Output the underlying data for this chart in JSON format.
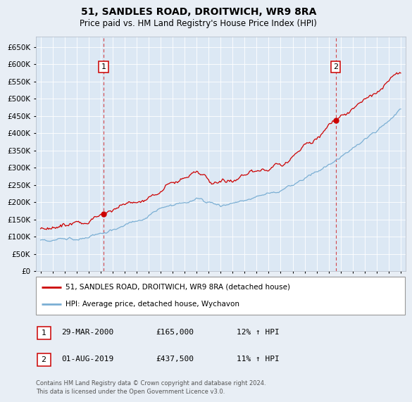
{
  "title": "51, SANDLES ROAD, DROITWICH, WR9 8RA",
  "subtitle": "Price paid vs. HM Land Registry's House Price Index (HPI)",
  "background_color": "#e8eef5",
  "plot_bg_color": "#dce8f4",
  "legend_label_red": "51, SANDLES ROAD, DROITWICH, WR9 8RA (detached house)",
  "legend_label_blue": "HPI: Average price, detached house, Wychavon",
  "annotation1_label": "1",
  "annotation1_date": "29-MAR-2000",
  "annotation1_price": "£165,000",
  "annotation1_hpi": "12% ↑ HPI",
  "annotation2_label": "2",
  "annotation2_date": "01-AUG-2019",
  "annotation2_price": "£437,500",
  "annotation2_hpi": "11% ↑ HPI",
  "footer": "Contains HM Land Registry data © Crown copyright and database right 2024.\nThis data is licensed under the Open Government Licence v3.0.",
  "ylim": [
    0,
    680000
  ],
  "yticks": [
    0,
    50000,
    100000,
    150000,
    200000,
    250000,
    300000,
    350000,
    400000,
    450000,
    500000,
    550000,
    600000,
    650000
  ],
  "red_color": "#cc0000",
  "blue_color": "#7bafd4",
  "marker1_year": 2000.25,
  "marker1_value": 165000,
  "marker2_year": 2019.58,
  "marker2_value": 437500,
  "vline1_year": 2000.25,
  "vline2_year": 2019.58
}
